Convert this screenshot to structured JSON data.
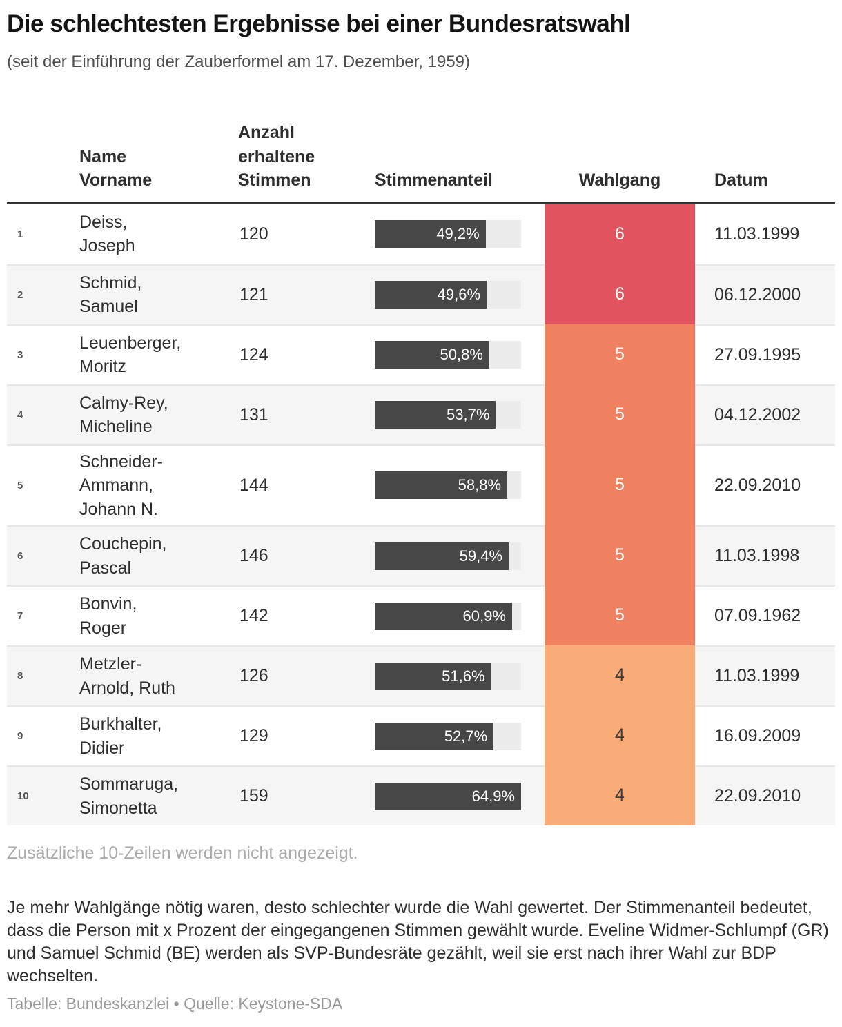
{
  "header": {
    "title": "Die schlechtesten Ergebnisse bei einer Bundesratswahl",
    "subtitle": "(seit der Einführung der Zauberformel am 17. Dezember, 1959)"
  },
  "table": {
    "columns": {
      "name": "Name\nVorname",
      "votes": "Anzahl\nerhaltene\nStimmen",
      "share": "Stimmenanteil",
      "round": "Wahlgang",
      "date": "Datum"
    }
  },
  "chart_data": {
    "type": "table",
    "title": "Die schlechtesten Ergebnisse bei einer Bundesratswahl",
    "subtitle": "(seit der Einführung der Zauberformel am 17. Dezember, 1959)",
    "bar_axis_max": 64.9,
    "bar_colors": {
      "fill": "#474747",
      "track": "#ececec"
    },
    "round_colors": {
      "6": "#e1545f",
      "5": "#f08160",
      "4": "#f9ac77"
    },
    "round_text_colors": {
      "6": "#ffffff",
      "5": "#ffffff",
      "4": "#3d3d3d"
    },
    "rows": [
      {
        "rank": 1,
        "name": "Deiss,\nJoseph",
        "votes": 120,
        "share_label": "49,2%",
        "share_value": 49.2,
        "round": 6,
        "date": "11.03.1999"
      },
      {
        "rank": 2,
        "name": "Schmid,\nSamuel",
        "votes": 121,
        "share_label": "49,6%",
        "share_value": 49.6,
        "round": 6,
        "date": "06.12.2000"
      },
      {
        "rank": 3,
        "name": "Leuenberger,\nMoritz",
        "votes": 124,
        "share_label": "50,8%",
        "share_value": 50.8,
        "round": 5,
        "date": "27.09.1995"
      },
      {
        "rank": 4,
        "name": "Calmy-Rey,\nMicheline",
        "votes": 131,
        "share_label": "53,7%",
        "share_value": 53.7,
        "round": 5,
        "date": "04.12.2002"
      },
      {
        "rank": 5,
        "name": "Schneider-\nAmmann,\nJohann N.",
        "votes": 144,
        "share_label": "58,8%",
        "share_value": 58.8,
        "round": 5,
        "date": "22.09.2010"
      },
      {
        "rank": 6,
        "name": "Couchepin,\nPascal",
        "votes": 146,
        "share_label": "59,4%",
        "share_value": 59.4,
        "round": 5,
        "date": "11.03.1998"
      },
      {
        "rank": 7,
        "name": "Bonvin,\nRoger",
        "votes": 142,
        "share_label": "60,9%",
        "share_value": 60.9,
        "round": 5,
        "date": "07.09.1962"
      },
      {
        "rank": 8,
        "name": "Metzler-\nArnold, Ruth",
        "votes": 126,
        "share_label": "51,6%",
        "share_value": 51.6,
        "round": 4,
        "date": "11.03.1999"
      },
      {
        "rank": 9,
        "name": "Burkhalter,\nDidier",
        "votes": 129,
        "share_label": "52,7%",
        "share_value": 52.7,
        "round": 4,
        "date": "16.09.2009"
      },
      {
        "rank": 10,
        "name": "Sommaruga,\nSimonetta",
        "votes": 159,
        "share_label": "64,9%",
        "share_value": 64.9,
        "round": 4,
        "date": "22.09.2010"
      }
    ]
  },
  "footer": {
    "notice": "Zusätzliche 10-Zeilen werden nicht angezeigt.",
    "note": "Je mehr Wahlgänge nötig waren, desto schlechter wurde die Wahl gewertet. Der Stimmenanteil bedeutet, dass die Person mit x Prozent der eingegangenen Stimmen gewählt wurde. Eveline Widmer-Schlumpf (GR) und Samuel Schmid (BE) werden als SVP-Bundesräte gezählt, weil sie erst nach ihrer Wahl zur BDP wechselten.",
    "credit": "Tabelle: Bundeskanzlei • Quelle: Keystone-SDA"
  }
}
